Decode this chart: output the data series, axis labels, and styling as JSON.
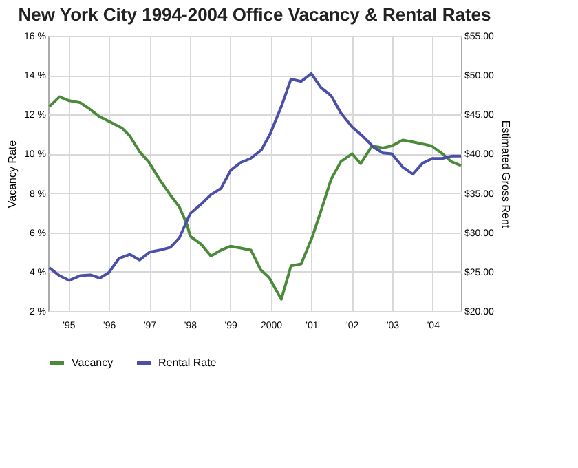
{
  "chart_data": {
    "type": "line",
    "title": "New York City 1994-2004 Office Vacancy & Rental Rates",
    "ylabel": "Vacancy Rate",
    "y2label": "Estimated Gross Rent",
    "xlim": [
      1994.5,
      2004.7
    ],
    "xticks": [
      {
        "value": 1995,
        "label": "'95"
      },
      {
        "value": 1996,
        "label": "'96"
      },
      {
        "value": 1997,
        "label": "'97"
      },
      {
        "value": 1998,
        "label": "'98"
      },
      {
        "value": 1999,
        "label": "'99"
      },
      2000,
      {
        "value": 2001,
        "label": "'01"
      },
      {
        "value": 2002,
        "label": "'02"
      },
      {
        "value": 2003,
        "label": "'03"
      },
      {
        "value": 2004,
        "label": "'04"
      }
    ],
    "ylim": [
      2,
      16
    ],
    "yticks": [
      {
        "value": 2,
        "label": "2 %"
      },
      {
        "value": 4,
        "label": "4 %"
      },
      {
        "value": 6,
        "label": "6 %"
      },
      {
        "value": 8,
        "label": "8 %"
      },
      {
        "value": 10,
        "label": "10 %"
      },
      {
        "value": 12,
        "label": "12 %"
      },
      {
        "value": 14,
        "label": "14 %"
      },
      {
        "value": 16,
        "label": "16 %"
      }
    ],
    "y2lim": [
      20,
      55
    ],
    "y2ticks": [
      {
        "value": 20,
        "label": "$20.00"
      },
      {
        "value": 25,
        "label": "$25.00"
      },
      {
        "value": 30,
        "label": "$30.00"
      },
      {
        "value": 35,
        "label": "$35.00"
      },
      {
        "value": 40,
        "label": "$40.00"
      },
      {
        "value": 45,
        "label": "$45.00"
      },
      {
        "value": 50,
        "label": "$50.00"
      },
      {
        "value": 55,
        "label": "$55.00"
      }
    ],
    "grid": true,
    "legend": "bottom",
    "series": [
      {
        "name": "Vacancy",
        "color": "#4a8a3a",
        "x": [
          1994.53,
          1994.78,
          1995.02,
          1995.29,
          1995.51,
          1995.76,
          1996.05,
          1996.33,
          1996.52,
          1996.76,
          1996.98,
          1997.25,
          1997.52,
          1997.74,
          1997.93,
          1998.01,
          1998.28,
          1998.52,
          1998.77,
          1999.01,
          1999.26,
          1999.51,
          1999.75,
          1999.96,
          2000.26,
          2000.5,
          2000.75,
          2001.03,
          2001.24,
          2001.49,
          2001.73,
          2002.01,
          2002.22,
          2002.5,
          2002.77,
          2002.99,
          2003.26,
          2003.51,
          2003.75,
          2003.97,
          2004.24,
          2004.46,
          2004.7
        ],
        "values": [
          12.4,
          12.9,
          12.7,
          12.6,
          12.3,
          11.9,
          11.6,
          11.3,
          10.9,
          10.1,
          9.6,
          8.7,
          7.9,
          7.3,
          6.4,
          5.8,
          5.4,
          4.8,
          5.1,
          5.3,
          5.2,
          5.1,
          4.1,
          3.7,
          2.6,
          4.3,
          4.4,
          5.8,
          7.1,
          8.7,
          9.6,
          10.0,
          9.5,
          10.4,
          10.3,
          10.4,
          10.7,
          10.6,
          10.5,
          10.4,
          10.0,
          9.6,
          9.4
        ]
      },
      {
        "name": "Rental Rate",
        "color": "#4a4fa8",
        "axis": "y2",
        "x": [
          1994.53,
          1994.78,
          1995.02,
          1995.29,
          1995.54,
          1995.78,
          1996.0,
          1996.25,
          1996.52,
          1996.76,
          1997.01,
          1997.3,
          1997.52,
          1997.74,
          1998.01,
          1998.28,
          1998.52,
          1998.77,
          1999.01,
          1999.26,
          1999.5,
          1999.77,
          1999.99,
          2000.26,
          2000.5,
          2000.75,
          2001.0,
          2001.24,
          2001.49,
          2001.73,
          2002.01,
          2002.28,
          2002.55,
          2002.77,
          2002.99,
          2003.26,
          2003.51,
          2003.75,
          2003.99,
          2004.24,
          2004.46,
          2004.7
        ],
        "values": [
          25.5,
          24.5,
          23.9,
          24.5,
          24.6,
          24.2,
          24.9,
          26.7,
          27.2,
          26.5,
          27.5,
          27.8,
          28.1,
          29.3,
          32.4,
          33.6,
          34.8,
          35.6,
          37.9,
          38.9,
          39.4,
          40.5,
          42.6,
          46.0,
          49.5,
          49.2,
          50.2,
          48.4,
          47.4,
          45.2,
          43.4,
          42.2,
          40.8,
          40.1,
          40.0,
          38.3,
          37.4,
          38.8,
          39.4,
          39.4,
          39.7,
          39.7
        ]
      }
    ]
  }
}
